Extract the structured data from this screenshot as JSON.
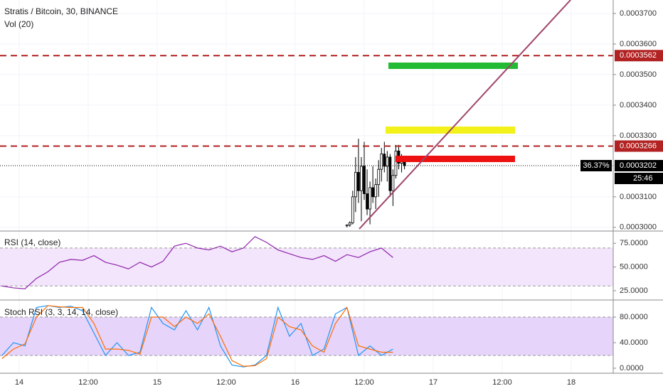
{
  "chart_data": [
    {
      "type": "candlestick",
      "title": "Stratis / Bitcoin, 30, BINANCE",
      "subtitle": "Vol (20)",
      "xlim": [
        -3.34,
        103.3
      ],
      "ylim": [
        0.0002988,
        0.0003744
      ],
      "yticks": [
        {
          "value": 0.00037,
          "label": "0.0003700"
        },
        {
          "value": 0.00036,
          "label": "0.0003600"
        },
        {
          "value": 0.00035,
          "label": "0.0003500"
        },
        {
          "value": 0.00034,
          "label": "0.0003400"
        },
        {
          "value": 0.00033,
          "label": "0.0003300"
        },
        {
          "value": 0.00031,
          "label": "0.0003100"
        },
        {
          "value": 0.0003,
          "label": "0.0003000"
        }
      ],
      "grid": true,
      "x": [
        57,
        57.5,
        58,
        58.5,
        59,
        59.5,
        60,
        60.5,
        61,
        61.5,
        62,
        62.5,
        63,
        63.5,
        64,
        64.5,
        65,
        65.5,
        66,
        66.5,
        67
      ],
      "open": [
        0.0003005,
        0.0003008,
        0.0003015,
        0.00031,
        0.000318,
        0.000312,
        0.00032,
        0.000311,
        0.000306,
        0.000313,
        0.00031,
        0.000314,
        0.000319,
        0.000324,
        0.00032,
        0.000323,
        0.000312,
        0.000317,
        0.000325,
        0.000321,
        0.000322
      ],
      "high": [
        0.000301,
        0.000302,
        0.000312,
        0.000323,
        0.000329,
        0.000323,
        0.000328,
        0.000319,
        0.000315,
        0.00032,
        0.000316,
        0.000322,
        0.000326,
        0.000328,
        0.000325,
        0.000324,
        0.000319,
        0.000327,
        0.000327,
        0.000324,
        0.000323
      ],
      "low": [
        0.0003,
        0.0003002,
        0.000301,
        0.000305,
        0.000308,
        0.000302,
        0.000309,
        0.000304,
        0.000301,
        0.000308,
        0.000306,
        0.00031,
        0.000315,
        0.000318,
        0.000315,
        0.00031,
        0.000307,
        0.000316,
        0.000319,
        0.000318,
        0.000319
      ],
      "close": [
        0.0003008,
        0.0003015,
        0.00031,
        0.000318,
        0.000312,
        0.00032,
        0.000311,
        0.000306,
        0.000313,
        0.00031,
        0.000314,
        0.000319,
        0.000324,
        0.00032,
        0.000323,
        0.000312,
        0.000317,
        0.000325,
        0.000321,
        0.000322,
        0.0003202
      ],
      "levels": [
        {
          "value": 0.0003562,
          "label": "0.0003562"
        },
        {
          "value": 0.0003266,
          "label": "0.0003266"
        }
      ],
      "level_color": "#b22222",
      "last": {
        "value": 0.0003202,
        "label": "0.0003202"
      },
      "change": {
        "value": 36.37,
        "label": "36.37%"
      },
      "countdown": "25:46"
    },
    {
      "type": "line",
      "title": "RSI (14, close)",
      "xlim": [
        -3.34,
        103.3
      ],
      "ylim": [
        15.2,
        87.9
      ],
      "yticks": [
        {
          "value": 75,
          "label": "75.0000"
        },
        {
          "value": 50,
          "label": "50.0000"
        },
        {
          "value": 25,
          "label": "25.0000"
        }
      ],
      "band": [
        30,
        70
      ],
      "band_color": "#f3e5fc",
      "x": [
        -3,
        -1,
        1,
        3,
        5,
        7,
        9,
        11,
        13,
        15,
        17,
        19,
        21,
        23,
        25,
        27,
        29,
        31,
        33,
        35,
        37,
        39,
        41,
        43,
        45,
        47,
        49,
        51,
        53,
        55,
        57,
        59,
        61,
        63,
        65
      ],
      "series": [
        {
          "color": "#8e24aa",
          "values": [
            30,
            28,
            27,
            38,
            45,
            55,
            58,
            57,
            62,
            55,
            52,
            48,
            55,
            50,
            56,
            72,
            75,
            70,
            68,
            72,
            66,
            70,
            82,
            76,
            68,
            64,
            60,
            58,
            62,
            56,
            63,
            60,
            66,
            70,
            60
          ]
        }
      ]
    },
    {
      "type": "line",
      "title": "Stoch RSI (3, 3, 14, 14, close)",
      "xlim": [
        -3.34,
        103.3
      ],
      "ylim": [
        -7.8,
        106.7
      ],
      "yticks": [
        {
          "value": 80,
          "label": "80.0000"
        },
        {
          "value": 40,
          "label": "40.0000"
        },
        {
          "value": 0,
          "label": "0.0000"
        }
      ],
      "xticks": [
        {
          "value": 0,
          "label": "14"
        },
        {
          "value": 12,
          "label": "12:00"
        },
        {
          "value": 24,
          "label": "15"
        },
        {
          "value": 36,
          "label": "12:00"
        },
        {
          "value": 48,
          "label": "16"
        },
        {
          "value": 60,
          "label": "12:00"
        },
        {
          "value": 72,
          "label": "17"
        },
        {
          "value": 84,
          "label": "12:00"
        },
        {
          "value": 96,
          "label": "18"
        }
      ],
      "band": [
        20,
        80
      ],
      "band_color": "#e6d4fb",
      "x": [
        -3,
        -1,
        1,
        3,
        5,
        7,
        9,
        11,
        13,
        15,
        17,
        19,
        21,
        23,
        25,
        27,
        29,
        31,
        33,
        35,
        37,
        39,
        41,
        43,
        45,
        47,
        49,
        51,
        53,
        55,
        57,
        59,
        61,
        63,
        65
      ],
      "series": [
        {
          "color": "#2196f3",
          "values": [
            20,
            40,
            35,
            95,
            98,
            95,
            97,
            90,
            55,
            20,
            40,
            20,
            25,
            95,
            70,
            60,
            90,
            60,
            95,
            35,
            5,
            2,
            5,
            20,
            95,
            50,
            70,
            20,
            30,
            85,
            95,
            20,
            35,
            20,
            30
          ]
        },
        {
          "color": "#ff6d00",
          "values": [
            15,
            30,
            38,
            80,
            98,
            96,
            95,
            95,
            70,
            30,
            30,
            28,
            22,
            80,
            80,
            65,
            80,
            70,
            85,
            50,
            12,
            3,
            4,
            15,
            80,
            65,
            60,
            35,
            25,
            70,
            95,
            35,
            30,
            25,
            25
          ]
        }
      ]
    }
  ]
}
